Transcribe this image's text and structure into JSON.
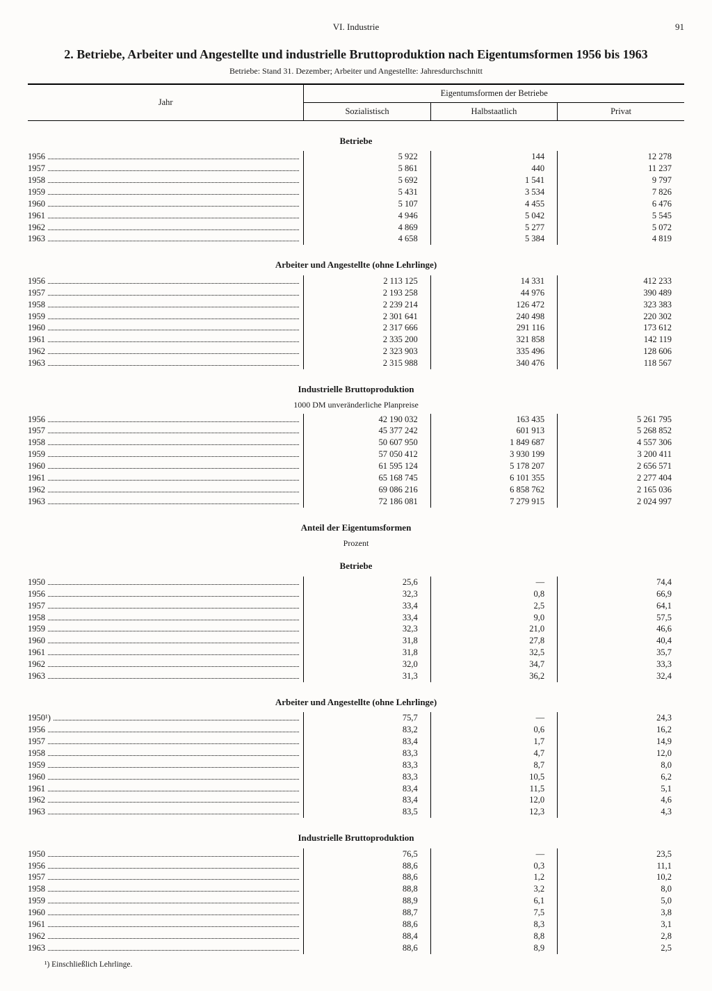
{
  "header": {
    "chapter": "VI. Industrie",
    "page": "91"
  },
  "title": "2. Betriebe, Arbeiter und Angestellte und industrielle Bruttoproduktion nach Eigentumsformen 1956 bis 1963",
  "subtitle": "Betriebe: Stand 31. Dezember; Arbeiter und Angestellte: Jahresdurchschnitt",
  "columns": {
    "year": "Jahr",
    "group": "Eigentumsformen der Betriebe",
    "s": "Sozialistisch",
    "h": "Halbstaatlich",
    "p": "Privat"
  },
  "sections": [
    {
      "heading": "Betriebe",
      "sub": null,
      "rows": [
        {
          "y": "1956",
          "s": "5 922",
          "h": "144",
          "p": "12 278"
        },
        {
          "y": "1957",
          "s": "5 861",
          "h": "440",
          "p": "11 237"
        },
        {
          "y": "1958",
          "s": "5 692",
          "h": "1 541",
          "p": "9 797"
        },
        {
          "y": "1959",
          "s": "5 431",
          "h": "3 534",
          "p": "7 826"
        },
        {
          "y": "1960",
          "s": "5 107",
          "h": "4 455",
          "p": "6 476"
        },
        {
          "y": "1961",
          "s": "4 946",
          "h": "5 042",
          "p": "5 545"
        },
        {
          "y": "1962",
          "s": "4 869",
          "h": "5 277",
          "p": "5 072"
        },
        {
          "y": "1963",
          "s": "4 658",
          "h": "5 384",
          "p": "4 819"
        }
      ]
    },
    {
      "heading": "Arbeiter und Angestellte (ohne Lehrlinge)",
      "sub": null,
      "rows": [
        {
          "y": "1956",
          "s": "2 113 125",
          "h": "14 331",
          "p": "412 233"
        },
        {
          "y": "1957",
          "s": "2 193 258",
          "h": "44 976",
          "p": "390 489"
        },
        {
          "y": "1958",
          "s": "2 239 214",
          "h": "126 472",
          "p": "323 383"
        },
        {
          "y": "1959",
          "s": "2 301 641",
          "h": "240 498",
          "p": "220 302"
        },
        {
          "y": "1960",
          "s": "2 317 666",
          "h": "291 116",
          "p": "173 612"
        },
        {
          "y": "1961",
          "s": "2 335 200",
          "h": "321 858",
          "p": "142 119"
        },
        {
          "y": "1962",
          "s": "2 323 903",
          "h": "335 496",
          "p": "128 606"
        },
        {
          "y": "1963",
          "s": "2 315 988",
          "h": "340 476",
          "p": "118 567"
        }
      ]
    },
    {
      "heading": "Industrielle Bruttoproduktion",
      "sub": "1000 DM unveränderliche Planpreise",
      "rows": [
        {
          "y": "1956",
          "s": "42 190 032",
          "h": "163 435",
          "p": "5 261 795"
        },
        {
          "y": "1957",
          "s": "45 377 242",
          "h": "601 913",
          "p": "5 268 852"
        },
        {
          "y": "1958",
          "s": "50 607 950",
          "h": "1 849 687",
          "p": "4 557 306"
        },
        {
          "y": "1959",
          "s": "57 050 412",
          "h": "3 930 199",
          "p": "3 200 411"
        },
        {
          "y": "1960",
          "s": "61 595 124",
          "h": "5 178 207",
          "p": "2 656 571"
        },
        {
          "y": "1961",
          "s": "65 168 745",
          "h": "6 101 355",
          "p": "2 277 404"
        },
        {
          "y": "1962",
          "s": "69 086 216",
          "h": "6 858 762",
          "p": "2 165 036"
        },
        {
          "y": "1963",
          "s": "72 186 081",
          "h": "7 279 915",
          "p": "2 024 997"
        }
      ]
    },
    {
      "heading": "Anteil der Eigentumsformen",
      "sub": "Prozent",
      "sub2": "Betriebe",
      "rows": [
        {
          "y": "1950",
          "s": "25,6",
          "h": "—",
          "p": "74,4"
        },
        {
          "y": "1956",
          "s": "32,3",
          "h": "0,8",
          "p": "66,9"
        },
        {
          "y": "1957",
          "s": "33,4",
          "h": "2,5",
          "p": "64,1"
        },
        {
          "y": "1958",
          "s": "33,4",
          "h": "9,0",
          "p": "57,5"
        },
        {
          "y": "1959",
          "s": "32,3",
          "h": "21,0",
          "p": "46,6"
        },
        {
          "y": "1960",
          "s": "31,8",
          "h": "27,8",
          "p": "40,4"
        },
        {
          "y": "1961",
          "s": "31,8",
          "h": "32,5",
          "p": "35,7"
        },
        {
          "y": "1962",
          "s": "32,0",
          "h": "34,7",
          "p": "33,3"
        },
        {
          "y": "1963",
          "s": "31,3",
          "h": "36,2",
          "p": "32,4"
        }
      ]
    },
    {
      "heading": "Arbeiter und Angestellte (ohne Lehrlinge)",
      "sub": null,
      "rows": [
        {
          "y": "1950¹)",
          "s": "75,7",
          "h": "—",
          "p": "24,3"
        },
        {
          "y": "1956",
          "s": "83,2",
          "h": "0,6",
          "p": "16,2"
        },
        {
          "y": "1957",
          "s": "83,4",
          "h": "1,7",
          "p": "14,9"
        },
        {
          "y": "1958",
          "s": "83,3",
          "h": "4,7",
          "p": "12,0"
        },
        {
          "y": "1959",
          "s": "83,3",
          "h": "8,7",
          "p": "8,0"
        },
        {
          "y": "1960",
          "s": "83,3",
          "h": "10,5",
          "p": "6,2"
        },
        {
          "y": "1961",
          "s": "83,4",
          "h": "11,5",
          "p": "5,1"
        },
        {
          "y": "1962",
          "s": "83,4",
          "h": "12,0",
          "p": "4,6"
        },
        {
          "y": "1963",
          "s": "83,5",
          "h": "12,3",
          "p": "4,3"
        }
      ]
    },
    {
      "heading": "Industrielle Bruttoproduktion",
      "sub": null,
      "rows": [
        {
          "y": "1950",
          "s": "76,5",
          "h": "—",
          "p": "23,5"
        },
        {
          "y": "1956",
          "s": "88,6",
          "h": "0,3",
          "p": "11,1"
        },
        {
          "y": "1957",
          "s": "88,6",
          "h": "1,2",
          "p": "10,2"
        },
        {
          "y": "1958",
          "s": "88,8",
          "h": "3,2",
          "p": "8,0"
        },
        {
          "y": "1959",
          "s": "88,9",
          "h": "6,1",
          "p": "5,0"
        },
        {
          "y": "1960",
          "s": "88,7",
          "h": "7,5",
          "p": "3,8"
        },
        {
          "y": "1961",
          "s": "88,6",
          "h": "8,3",
          "p": "3,1"
        },
        {
          "y": "1962",
          "s": "88,4",
          "h": "8,8",
          "p": "2,8"
        },
        {
          "y": "1963",
          "s": "88,6",
          "h": "8,9",
          "p": "2,5"
        }
      ]
    }
  ],
  "footnote": "¹) Einschließlich Lehrlinge."
}
